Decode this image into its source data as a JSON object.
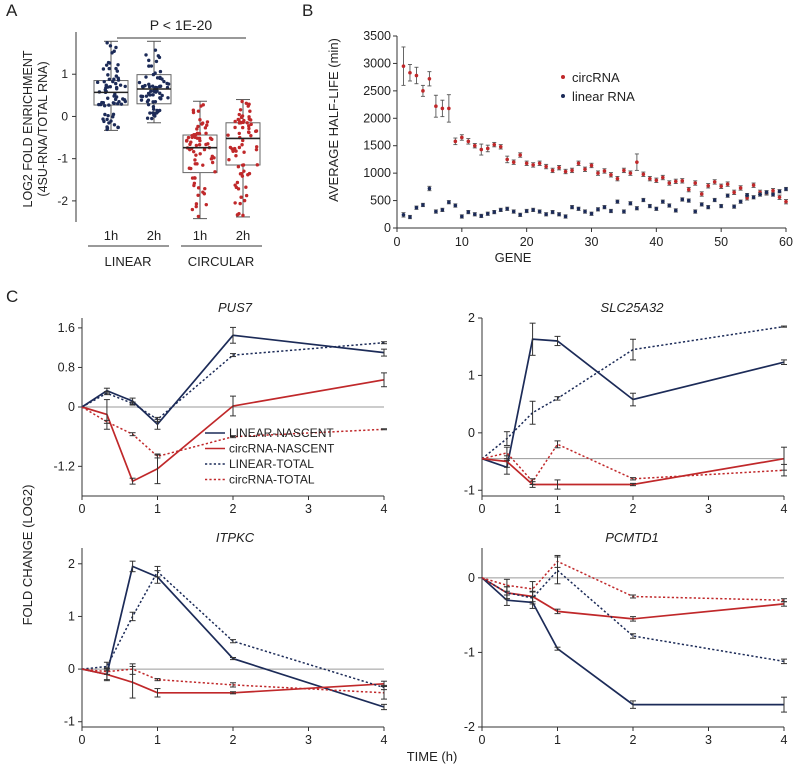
{
  "panel_labels": {
    "a": "A",
    "b": "B",
    "c": "C"
  },
  "colors": {
    "linear": "#1c2b58",
    "circ": "#c0282a",
    "axis": "#333333",
    "zero": "#9a9a9a"
  },
  "chart_data": [
    {
      "id": "A",
      "type": "boxplot",
      "ylabel_line1": "LOG2 FOLD ENRICHMENT",
      "ylabel_line2": "(4SU-RNA/TOTAL RNA)",
      "ylim": [
        -2.5,
        2.0
      ],
      "yticks": [
        -2,
        -1,
        0,
        1
      ],
      "annotation": "P < 1E-20",
      "group_labels": [
        "LINEAR",
        "CIRCULAR"
      ],
      "boxes": [
        {
          "label": "1h",
          "group": "LINEAR",
          "color": "#1c2b58",
          "min": -0.33,
          "q1": 0.27,
          "median": 0.57,
          "q3": 0.85,
          "max": 1.78
        },
        {
          "label": "2h",
          "group": "LINEAR",
          "color": "#1c2b58",
          "min": -0.15,
          "q1": 0.3,
          "median": 0.65,
          "q3": 0.99,
          "max": 1.78
        },
        {
          "label": "1h",
          "group": "CIRCULAR",
          "color": "#c0282a",
          "min": -2.42,
          "q1": -1.33,
          "median": -0.74,
          "q3": -0.44,
          "max": 0.36
        },
        {
          "label": "2h",
          "group": "CIRCULAR",
          "color": "#c0282a",
          "min": -2.38,
          "q1": -1.15,
          "median": -0.52,
          "q3": -0.15,
          "max": 0.4
        }
      ]
    },
    {
      "id": "B",
      "type": "scatter",
      "xlabel": "GENE",
      "ylabel": "AVERAGE HALF-LIFE (min)",
      "xlim": [
        0,
        60
      ],
      "ylim": [
        0,
        3500
      ],
      "xticks": [
        0,
        10,
        20,
        30,
        40,
        50,
        60
      ],
      "yticks": [
        0,
        500,
        1000,
        1500,
        2000,
        2500,
        3000,
        3500
      ],
      "series": [
        {
          "name": "circRNA",
          "color": "#c0282a",
          "values": [
            2950,
            2830,
            2780,
            2500,
            2720,
            2220,
            2180,
            2180,
            1580,
            1650,
            1580,
            1500,
            1430,
            1450,
            1520,
            1480,
            1250,
            1200,
            1330,
            1180,
            1150,
            1180,
            1120,
            1050,
            1100,
            1030,
            1050,
            1180,
            1070,
            1140,
            1000,
            1040,
            970,
            900,
            1050,
            1000,
            1200,
            980,
            900,
            870,
            920,
            820,
            850,
            860,
            700,
            820,
            620,
            770,
            840,
            760,
            800,
            650,
            730,
            550,
            780,
            650,
            640,
            680,
            560,
            480
          ],
          "errors": [
            350,
            150,
            150,
            100,
            130,
            200,
            150,
            250,
            60,
            50,
            50,
            40,
            100,
            60,
            40,
            40,
            60,
            40,
            40,
            40,
            40,
            40,
            40,
            40,
            40,
            40,
            40,
            40,
            40,
            40,
            40,
            40,
            40,
            40,
            40,
            40,
            150,
            40,
            40,
            40,
            40,
            40,
            40,
            40,
            40,
            40,
            40,
            40,
            40,
            40,
            40,
            40,
            40,
            40,
            40,
            40,
            40,
            40,
            40,
            40
          ]
        },
        {
          "name": "linear RNA",
          "color": "#1c2b58",
          "values": [
            240,
            200,
            370,
            420,
            720,
            300,
            330,
            470,
            410,
            210,
            290,
            250,
            220,
            260,
            290,
            330,
            350,
            300,
            240,
            310,
            330,
            300,
            250,
            290,
            250,
            210,
            380,
            350,
            300,
            260,
            340,
            380,
            310,
            480,
            300,
            450,
            360,
            510,
            400,
            350,
            480,
            410,
            320,
            520,
            500,
            300,
            430,
            380,
            510,
            400,
            590,
            390,
            480,
            600,
            560,
            610,
            650,
            610,
            670,
            710
          ],
          "errors": [
            40,
            30,
            30,
            30,
            40,
            30,
            30,
            30,
            30,
            30,
            30,
            30,
            30,
            30,
            30,
            30,
            30,
            30,
            30,
            30,
            30,
            30,
            30,
            30,
            30,
            30,
            30,
            30,
            30,
            30,
            30,
            30,
            30,
            30,
            30,
            30,
            30,
            30,
            30,
            30,
            30,
            30,
            30,
            30,
            30,
            30,
            30,
            30,
            30,
            30,
            30,
            30,
            30,
            30,
            30,
            30,
            30,
            30,
            30,
            30
          ]
        }
      ]
    },
    {
      "id": "C",
      "type": "line",
      "ylabel": "FOLD CHANGE (LOG2)",
      "xlabel": "TIME (h)",
      "x": [
        0,
        0.33,
        0.67,
        1,
        2,
        4
      ],
      "xticks": [
        0,
        1,
        2,
        3,
        4
      ],
      "legend": [
        "LINEAR-NASCENT",
        "circRNA-NASCENT",
        "LINEAR-TOTAL",
        "circRNA-TOTAL"
      ],
      "panels": [
        {
          "gene": "PUS7",
          "ylim": [
            -1.8,
            1.8
          ],
          "yticks": [
            -1.2,
            0,
            0.8,
            1.6
          ],
          "ytick_labels": [
            "-1.2",
            "0",
            "0.8",
            "1.6"
          ],
          "series": [
            {
              "name": "LINEAR-NASCENT",
              "values": [
                0,
                0.33,
                0.12,
                -0.35,
                1.45,
                1.1
              ],
              "errors": [
                0,
                0.05,
                0.06,
                0.1,
                0.16,
                0.07
              ]
            },
            {
              "name": "circRNA-NASCENT",
              "values": [
                0,
                -0.15,
                -1.5,
                -1.25,
                0.02,
                0.55
              ],
              "errors": [
                0,
                0.3,
                0.06,
                0.3,
                0.2,
                0.14
              ]
            },
            {
              "name": "LINEAR-TOTAL",
              "values": [
                0,
                0.28,
                0.07,
                -0.25,
                1.05,
                1.3
              ],
              "errors": [
                0,
                0.03,
                0.03,
                0.04,
                0.03,
                0.02
              ]
            },
            {
              "name": "circRNA-TOTAL",
              "values": [
                0,
                -0.3,
                -0.55,
                -1.0,
                -0.6,
                -0.45
              ],
              "errors": [
                0,
                0.03,
                0.03,
                0.03,
                0.02,
                0.01
              ]
            }
          ]
        },
        {
          "gene": "SLC25A32",
          "ylim": [
            -1.1,
            2.0
          ],
          "yticks": [
            -1,
            0,
            1,
            2
          ],
          "ytick_labels": [
            "-1",
            "0",
            "1",
            "2"
          ],
          "series": [
            {
              "name": "LINEAR-NASCENT",
              "values": [
                -0.45,
                -0.6,
                1.63,
                1.6,
                0.58,
                1.23
              ],
              "errors": [
                0,
                0.12,
                0.28,
                0.08,
                0.11,
                0.04
              ]
            },
            {
              "name": "circRNA-NASCENT",
              "values": [
                -0.45,
                -0.5,
                -0.9,
                -0.9,
                -0.9,
                -0.45
              ],
              "errors": [
                0,
                0.1,
                0.05,
                0.08,
                0.02,
                0.2
              ]
            },
            {
              "name": "LINEAR-TOTAL",
              "values": [
                -0.45,
                -0.1,
                0.35,
                0.6,
                1.45,
                1.85
              ],
              "errors": [
                0,
                0.12,
                0.2,
                0.03,
                0.18,
                0.01
              ]
            },
            {
              "name": "circRNA-TOTAL",
              "values": [
                -0.45,
                -0.35,
                -0.85,
                -0.2,
                -0.8,
                -0.65
              ],
              "errors": [
                0,
                0.1,
                0.05,
                0.06,
                0.02,
                0.1
              ]
            }
          ]
        },
        {
          "gene": "ITPKC",
          "ylim": [
            -1.1,
            2.3
          ],
          "yticks": [
            -1,
            0,
            1,
            2
          ],
          "ytick_labels": [
            "-1",
            "0",
            "1",
            "2"
          ],
          "series": [
            {
              "name": "LINEAR-NASCENT",
              "values": [
                0,
                -0.1,
                1.95,
                1.75,
                0.2,
                -0.72
              ],
              "errors": [
                0,
                0.1,
                0.1,
                0.12,
                0.02,
                0.05
              ]
            },
            {
              "name": "circRNA-NASCENT",
              "values": [
                0,
                -0.1,
                -0.25,
                -0.45,
                -0.45,
                -0.28
              ],
              "errors": [
                0,
                0.12,
                0.3,
                0.08,
                0.02,
                0.05
              ]
            },
            {
              "name": "LINEAR-TOTAL",
              "values": [
                0,
                0.05,
                1.0,
                1.85,
                0.53,
                -0.35
              ],
              "errors": [
                0,
                0.08,
                0.08,
                0.1,
                0.03,
                0.04
              ]
            },
            {
              "name": "circRNA-TOTAL",
              "values": [
                0,
                -0.05,
                0.0,
                -0.2,
                -0.3,
                -0.45
              ],
              "errors": [
                0,
                0.05,
                0.1,
                0.02,
                0.04,
                0.12
              ]
            }
          ]
        },
        {
          "gene": "PCMTD1",
          "ylim": [
            -2.0,
            0.4
          ],
          "yticks": [
            -2,
            -1,
            0
          ],
          "ytick_labels": [
            "-2",
            "-1",
            "0"
          ],
          "series": [
            {
              "name": "LINEAR-NASCENT",
              "values": [
                0,
                -0.3,
                -0.33,
                -0.95,
                -1.7,
                -1.7
              ],
              "errors": [
                0,
                0.07,
                0.08,
                0.02,
                0.05,
                0.1
              ]
            },
            {
              "name": "circRNA-NASCENT",
              "values": [
                0,
                -0.2,
                -0.25,
                -0.45,
                -0.55,
                -0.35
              ],
              "errors": [
                0,
                0.08,
                0.07,
                0.03,
                0.03,
                0.03
              ]
            },
            {
              "name": "LINEAR-TOTAL",
              "values": [
                0,
                -0.2,
                -0.27,
                0.1,
                -0.78,
                -1.12
              ],
              "errors": [
                0,
                0.08,
                0.08,
                0.18,
                0.03,
                0.03
              ]
            },
            {
              "name": "circRNA-TOTAL",
              "values": [
                0,
                -0.1,
                -0.15,
                0.22,
                -0.25,
                -0.3
              ],
              "errors": [
                0,
                0.08,
                0.1,
                0.08,
                0.02,
                0.02
              ]
            }
          ]
        }
      ]
    }
  ]
}
